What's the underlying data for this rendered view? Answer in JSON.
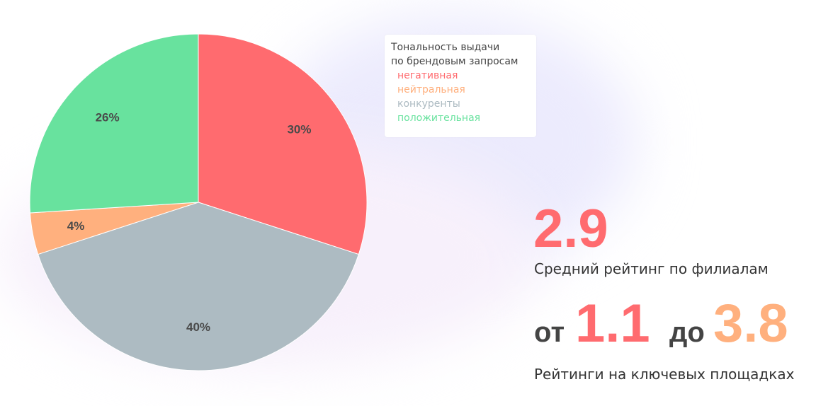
{
  "chart_data": {
    "type": "pie",
    "title": "Тональность выдачи по брендовым запросам",
    "title_lines": [
      "Тональность выдачи",
      "по брендовым запросам"
    ],
    "categories": [
      "негативная",
      "нейтральная",
      "конкуренты",
      "положительная"
    ],
    "values": [
      30,
      4,
      40,
      26
    ],
    "slice_order_clockwise_from_top": [
      "негативная",
      "конкуренты",
      "нейтральная",
      "положительная"
    ],
    "labels": {
      "негативная": "30%",
      "нейтральная": "4%",
      "конкуренты": "40%",
      "положительная": "26%"
    },
    "colors": {
      "негативная": "#ff6b6f",
      "нейтральная": "#ffb07e",
      "конкуренты": "#adbbc2",
      "положительная": "#68e29e"
    },
    "legend": "top-right"
  },
  "stats": {
    "avg_value": "2.9",
    "avg_caption": "Средний рейтинг по филиалам",
    "from_word": "от",
    "from_value": "1.1",
    "to_word": "до",
    "to_value": "3.8",
    "range_caption": "Рейтинги на ключевых площадках"
  }
}
